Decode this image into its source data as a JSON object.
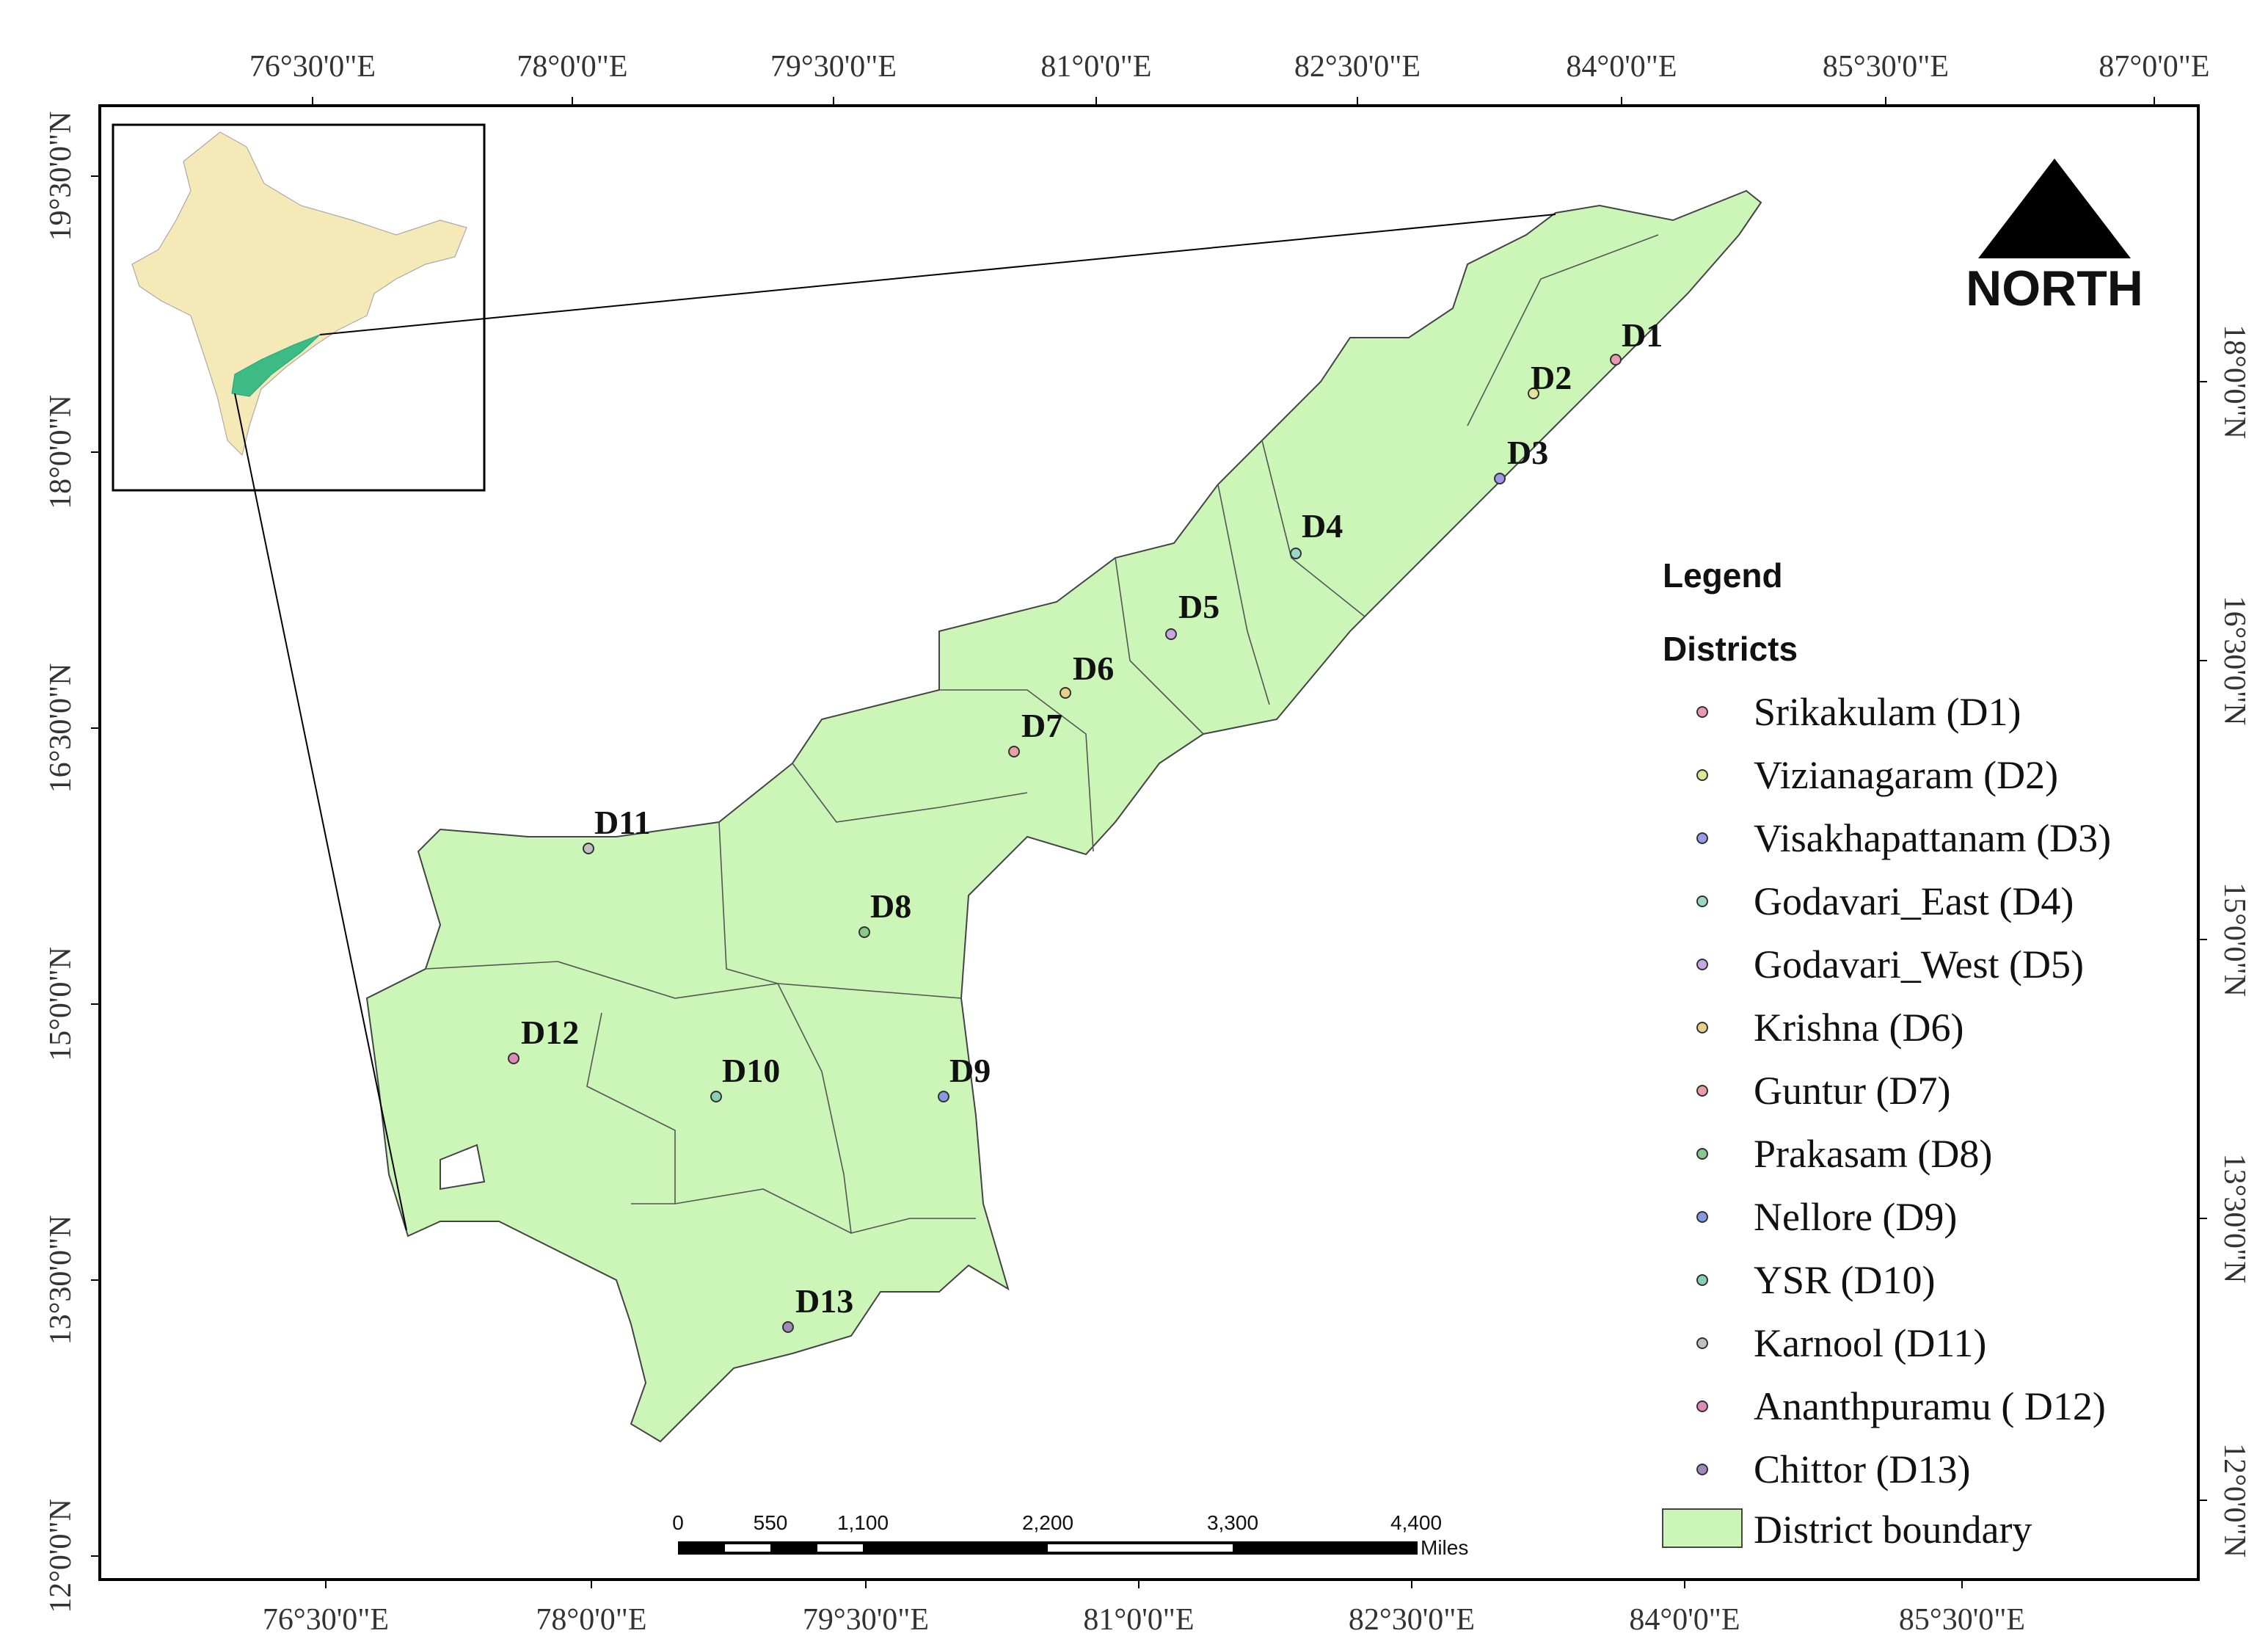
{
  "map": {
    "top_axis_labels": [
      "76°30'0\"E",
      "78°0'0\"E",
      "79°30'0\"E",
      "81°0'0\"E",
      "82°30'0\"E",
      "84°0'0\"E",
      "85°30'0\"E",
      "87°0'0\"E"
    ],
    "bottom_axis_labels": [
      "76°30'0\"E",
      "78°0'0\"E",
      "79°30'0\"E",
      "81°0'0\"E",
      "82°30'0\"E",
      "84°0'0\"E",
      "85°30'0\"E"
    ],
    "left_axis_labels": [
      "19°30'0\"N",
      "18°0'0\"N",
      "16°30'0\"N",
      "15°0'0\"N",
      "13°30'0\"N",
      "12°0'0\"N"
    ],
    "right_axis_labels": [
      "18°0'0\"N",
      "16°30'0\"N",
      "15°0'0\"N",
      "13°30'0\"N",
      "12°0'0\"N"
    ],
    "district_labels": [
      "D1",
      "D2",
      "D3",
      "D4",
      "D5",
      "D6",
      "D7",
      "D8",
      "D9",
      "D10",
      "D11",
      "D12",
      "D13"
    ],
    "north_arrow": "NORTH",
    "legend": {
      "title": "Legend",
      "subtitle": "Districts",
      "entries": [
        "Srikakulam (D1)",
        "Vizianagaram (D2)",
        "Visakhapattanam (D3)",
        "Godavari_East (D4)",
        "Godavari_West (D5)",
        "Krishna (D6)",
        "Guntur (D7)",
        "Prakasam (D8)",
        "Nellore (D9)",
        "YSR (D10)",
        "Karnool (D11)",
        "Ananthpuramu ( D12)",
        "Chittor (D13)"
      ],
      "boundary": "District boundary"
    },
    "scale_bar": {
      "labels": [
        "0",
        "550",
        "1,100",
        "2,200",
        "3,300",
        "4,400"
      ],
      "unit": "Miles"
    }
  }
}
